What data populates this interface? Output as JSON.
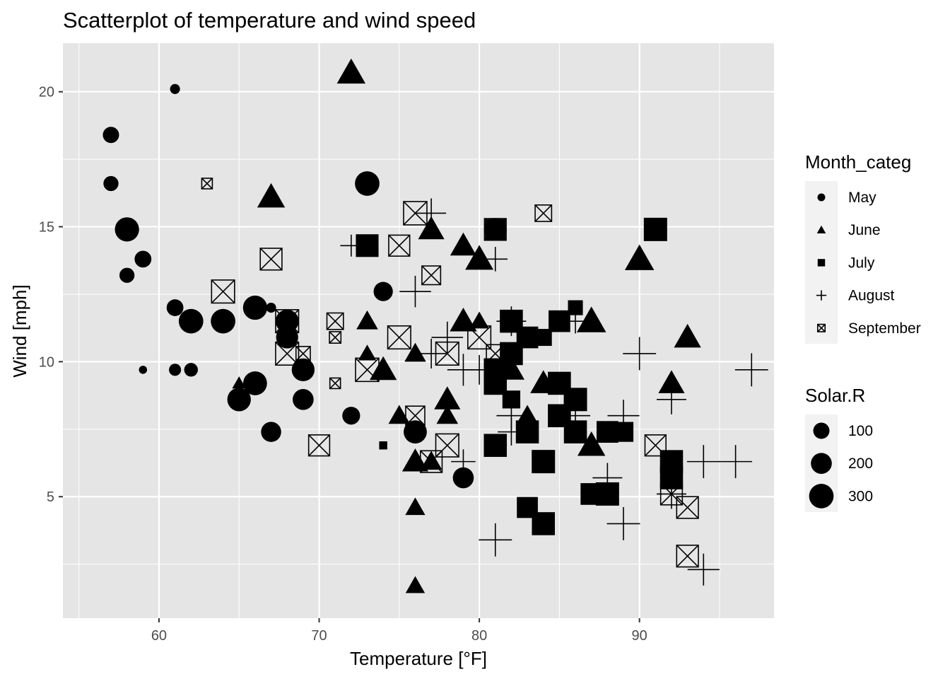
{
  "chart_data": {
    "type": "scatter",
    "title": "Scatterplot of temperature and wind speed",
    "xlabel": "Temperature [°F]",
    "ylabel": "Wind [mph]",
    "xlim": [
      54,
      98.4
    ],
    "ylim": [
      0.5,
      21.8
    ],
    "xticks": [
      60,
      70,
      80,
      90
    ],
    "yticks": [
      5,
      10,
      15,
      20
    ],
    "tick_labels": {
      "x": [
        "60",
        "70",
        "80",
        "90"
      ],
      "y": [
        "5",
        "10",
        "15",
        "20"
      ]
    },
    "grid": true,
    "background": "#e5e5e5",
    "legend_position": "right",
    "shape_legend": {
      "title": "Month_categ",
      "entries": [
        {
          "label": "May",
          "shape": "circle"
        },
        {
          "label": "June",
          "shape": "triangle"
        },
        {
          "label": "July",
          "shape": "square"
        },
        {
          "label": "August",
          "shape": "plus"
        },
        {
          "label": "September",
          "shape": "square-x"
        }
      ]
    },
    "size_legend": {
      "title": "Solar.R",
      "entries": [
        {
          "label": "100",
          "value": 100
        },
        {
          "label": "200",
          "value": 200
        },
        {
          "label": "300",
          "value": 300
        }
      ]
    },
    "series": [
      {
        "name": "May",
        "shape": "circle",
        "points": [
          {
            "x": 61,
            "y": 20.1,
            "s": 20
          },
          {
            "x": 57,
            "y": 18.4,
            "s": 100
          },
          {
            "x": 57,
            "y": 16.6,
            "s": 80
          },
          {
            "x": 58,
            "y": 14.9,
            "s": 290
          },
          {
            "x": 59,
            "y": 13.8,
            "s": 110
          },
          {
            "x": 58,
            "y": 13.2,
            "s": 80
          },
          {
            "x": 61,
            "y": 12.0,
            "s": 110
          },
          {
            "x": 62,
            "y": 11.5,
            "s": 300
          },
          {
            "x": 64,
            "y": 11.5,
            "s": 300
          },
          {
            "x": 66,
            "y": 12.0,
            "s": 290
          },
          {
            "x": 67,
            "y": 12.0,
            "s": 20
          },
          {
            "x": 68,
            "y": 11.5,
            "s": 260
          },
          {
            "x": 68,
            "y": 10.9,
            "s": 230
          },
          {
            "x": 69,
            "y": 9.7,
            "s": 250
          },
          {
            "x": 59,
            "y": 9.7,
            "s": 8
          },
          {
            "x": 61,
            "y": 9.7,
            "s": 40
          },
          {
            "x": 62,
            "y": 9.7,
            "s": 60
          },
          {
            "x": 66,
            "y": 9.2,
            "s": 280
          },
          {
            "x": 65,
            "y": 8.6,
            "s": 270
          },
          {
            "x": 69,
            "y": 8.6,
            "s": 200
          },
          {
            "x": 67,
            "y": 7.4,
            "s": 180
          },
          {
            "x": 72,
            "y": 8.0,
            "s": 130
          },
          {
            "x": 73,
            "y": 16.6,
            "s": 300
          },
          {
            "x": 74,
            "y": 12.6,
            "s": 160
          },
          {
            "x": 76,
            "y": 7.4,
            "s": 260
          },
          {
            "x": 79,
            "y": 5.7,
            "s": 200
          },
          {
            "x": 81,
            "y": 14.9,
            "s": 250
          }
        ]
      },
      {
        "name": "June",
        "shape": "triangle",
        "points": [
          {
            "x": 72,
            "y": 20.7,
            "s": 310
          },
          {
            "x": 67,
            "y": 16.1,
            "s": 290
          },
          {
            "x": 77,
            "y": 14.9,
            "s": 250
          },
          {
            "x": 79,
            "y": 14.3,
            "s": 250
          },
          {
            "x": 80,
            "y": 13.8,
            "s": 300
          },
          {
            "x": 90,
            "y": 13.8,
            "s": 330
          },
          {
            "x": 73,
            "y": 11.5,
            "s": 150
          },
          {
            "x": 79,
            "y": 11.5,
            "s": 270
          },
          {
            "x": 80,
            "y": 11.5,
            "s": 110
          },
          {
            "x": 87,
            "y": 11.5,
            "s": 330
          },
          {
            "x": 93,
            "y": 10.9,
            "s": 270
          },
          {
            "x": 73,
            "y": 10.3,
            "s": 90
          },
          {
            "x": 76,
            "y": 10.3,
            "s": 150
          },
          {
            "x": 74,
            "y": 9.7,
            "s": 270
          },
          {
            "x": 82,
            "y": 9.7,
            "s": 250
          },
          {
            "x": 65,
            "y": 9.2,
            "s": 40
          },
          {
            "x": 84,
            "y": 9.2,
            "s": 250
          },
          {
            "x": 92,
            "y": 9.2,
            "s": 250
          },
          {
            "x": 78,
            "y": 8.6,
            "s": 250
          },
          {
            "x": 75,
            "y": 8.0,
            "s": 150
          },
          {
            "x": 78,
            "y": 8.0,
            "s": 150
          },
          {
            "x": 83,
            "y": 8.0,
            "s": 150
          },
          {
            "x": 87,
            "y": 6.9,
            "s": 290
          },
          {
            "x": 76,
            "y": 6.3,
            "s": 250
          },
          {
            "x": 77,
            "y": 6.3,
            "s": 150
          },
          {
            "x": 76,
            "y": 4.6,
            "s": 120
          },
          {
            "x": 76,
            "y": 1.7,
            "s": 110
          }
        ]
      },
      {
        "name": "July",
        "shape": "square",
        "points": [
          {
            "x": 91,
            "y": 14.9,
            "s": 300
          },
          {
            "x": 73,
            "y": 14.3,
            "s": 280
          },
          {
            "x": 81,
            "y": 14.9,
            "s": 220
          },
          {
            "x": 86,
            "y": 12.0,
            "s": 90
          },
          {
            "x": 82,
            "y": 11.5,
            "s": 290
          },
          {
            "x": 85,
            "y": 11.5,
            "s": 250
          },
          {
            "x": 83,
            "y": 10.9,
            "s": 250
          },
          {
            "x": 84,
            "y": 10.9,
            "s": 130
          },
          {
            "x": 82,
            "y": 10.3,
            "s": 290
          },
          {
            "x": 81,
            "y": 9.7,
            "s": 290
          },
          {
            "x": 81,
            "y": 9.2,
            "s": 290
          },
          {
            "x": 85,
            "y": 9.2,
            "s": 290
          },
          {
            "x": 86,
            "y": 8.6,
            "s": 300
          },
          {
            "x": 82,
            "y": 8.6,
            "s": 150
          },
          {
            "x": 85,
            "y": 8.0,
            "s": 290
          },
          {
            "x": 86,
            "y": 7.4,
            "s": 290
          },
          {
            "x": 83,
            "y": 7.4,
            "s": 290
          },
          {
            "x": 88,
            "y": 7.4,
            "s": 250
          },
          {
            "x": 89,
            "y": 7.4,
            "s": 200
          },
          {
            "x": 81,
            "y": 6.9,
            "s": 290
          },
          {
            "x": 84,
            "y": 6.3,
            "s": 300
          },
          {
            "x": 92,
            "y": 6.3,
            "s": 290
          },
          {
            "x": 92,
            "y": 5.7,
            "s": 290
          },
          {
            "x": 87,
            "y": 5.1,
            "s": 250
          },
          {
            "x": 88,
            "y": 5.1,
            "s": 300
          },
          {
            "x": 83,
            "y": 4.6,
            "s": 230
          },
          {
            "x": 84,
            "y": 4.0,
            "s": 290
          },
          {
            "x": 74,
            "y": 6.9,
            "s": 10
          }
        ]
      },
      {
        "name": "August",
        "shape": "plus",
        "points": [
          {
            "x": 77,
            "y": 15.5,
            "s": 250
          },
          {
            "x": 72,
            "y": 14.3,
            "s": 110
          },
          {
            "x": 81,
            "y": 13.8,
            "s": 150
          },
          {
            "x": 76,
            "y": 12.6,
            "s": 290
          },
          {
            "x": 82,
            "y": 11.5,
            "s": 250
          },
          {
            "x": 86,
            "y": 11.5,
            "s": 150
          },
          {
            "x": 78,
            "y": 10.9,
            "s": 290
          },
          {
            "x": 77,
            "y": 10.3,
            "s": 250
          },
          {
            "x": 90,
            "y": 10.3,
            "s": 330
          },
          {
            "x": 79,
            "y": 9.7,
            "s": 300
          },
          {
            "x": 80,
            "y": 9.7,
            "s": 250
          },
          {
            "x": 97,
            "y": 9.7,
            "s": 330
          },
          {
            "x": 92,
            "y": 8.6,
            "s": 250
          },
          {
            "x": 82,
            "y": 8.0,
            "s": 250
          },
          {
            "x": 86,
            "y": 8.0,
            "s": 250
          },
          {
            "x": 89,
            "y": 8.0,
            "s": 300
          },
          {
            "x": 82,
            "y": 7.4,
            "s": 200
          },
          {
            "x": 79,
            "y": 6.3,
            "s": 150
          },
          {
            "x": 94,
            "y": 6.3,
            "s": 330
          },
          {
            "x": 96,
            "y": 6.3,
            "s": 330
          },
          {
            "x": 88,
            "y": 5.7,
            "s": 250
          },
          {
            "x": 92,
            "y": 5.1,
            "s": 250
          },
          {
            "x": 89,
            "y": 4.0,
            "s": 330
          },
          {
            "x": 81,
            "y": 3.4,
            "s": 330
          },
          {
            "x": 94,
            "y": 2.3,
            "s": 300
          }
        ]
      },
      {
        "name": "September",
        "shape": "square-x",
        "points": [
          {
            "x": 63,
            "y": 16.6,
            "s": 30
          },
          {
            "x": 76,
            "y": 15.5,
            "s": 300
          },
          {
            "x": 84,
            "y": 15.5,
            "s": 120
          },
          {
            "x": 75,
            "y": 14.3,
            "s": 230
          },
          {
            "x": 81,
            "y": 14.9,
            "s": 250
          },
          {
            "x": 67,
            "y": 13.8,
            "s": 250
          },
          {
            "x": 77,
            "y": 13.2,
            "s": 170
          },
          {
            "x": 64,
            "y": 12.6,
            "s": 290
          },
          {
            "x": 68,
            "y": 11.5,
            "s": 290
          },
          {
            "x": 71,
            "y": 11.5,
            "s": 120
          },
          {
            "x": 71,
            "y": 10.9,
            "s": 40
          },
          {
            "x": 75,
            "y": 10.9,
            "s": 290
          },
          {
            "x": 80,
            "y": 10.9,
            "s": 290
          },
          {
            "x": 68,
            "y": 10.3,
            "s": 290
          },
          {
            "x": 69,
            "y": 10.3,
            "s": 80
          },
          {
            "x": 78,
            "y": 10.3,
            "s": 290
          },
          {
            "x": 81,
            "y": 10.3,
            "s": 150
          },
          {
            "x": 73,
            "y": 9.7,
            "s": 300
          },
          {
            "x": 71,
            "y": 9.2,
            "s": 30
          },
          {
            "x": 76,
            "y": 8.0,
            "s": 180
          },
          {
            "x": 70,
            "y": 6.9,
            "s": 230
          },
          {
            "x": 78,
            "y": 6.9,
            "s": 290
          },
          {
            "x": 91,
            "y": 6.9,
            "s": 230
          },
          {
            "x": 77,
            "y": 6.3,
            "s": 250
          },
          {
            "x": 92,
            "y": 5.1,
            "s": 250
          },
          {
            "x": 93,
            "y": 4.6,
            "s": 250
          },
          {
            "x": 93,
            "y": 2.8,
            "s": 250
          }
        ]
      }
    ]
  }
}
